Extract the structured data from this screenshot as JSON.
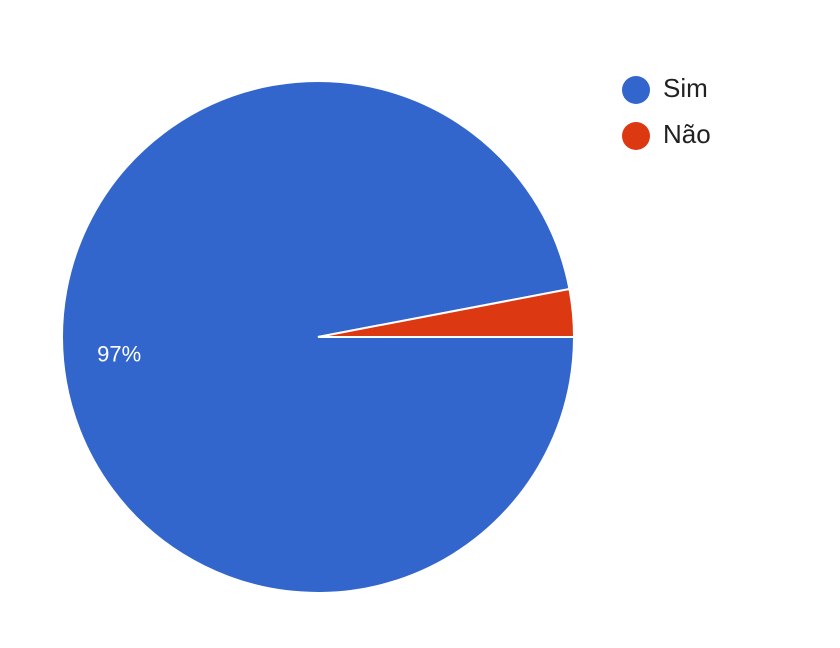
{
  "chart_data": {
    "type": "pie",
    "title": "",
    "categories": [
      "Sim",
      "Não"
    ],
    "values": [
      97,
      3
    ],
    "value_labels": [
      "97%",
      ""
    ],
    "unit": "%",
    "legend_position": "right",
    "colors": [
      "#3366cc",
      "#dc3912"
    ],
    "slice_border_color": "#ffffff"
  }
}
